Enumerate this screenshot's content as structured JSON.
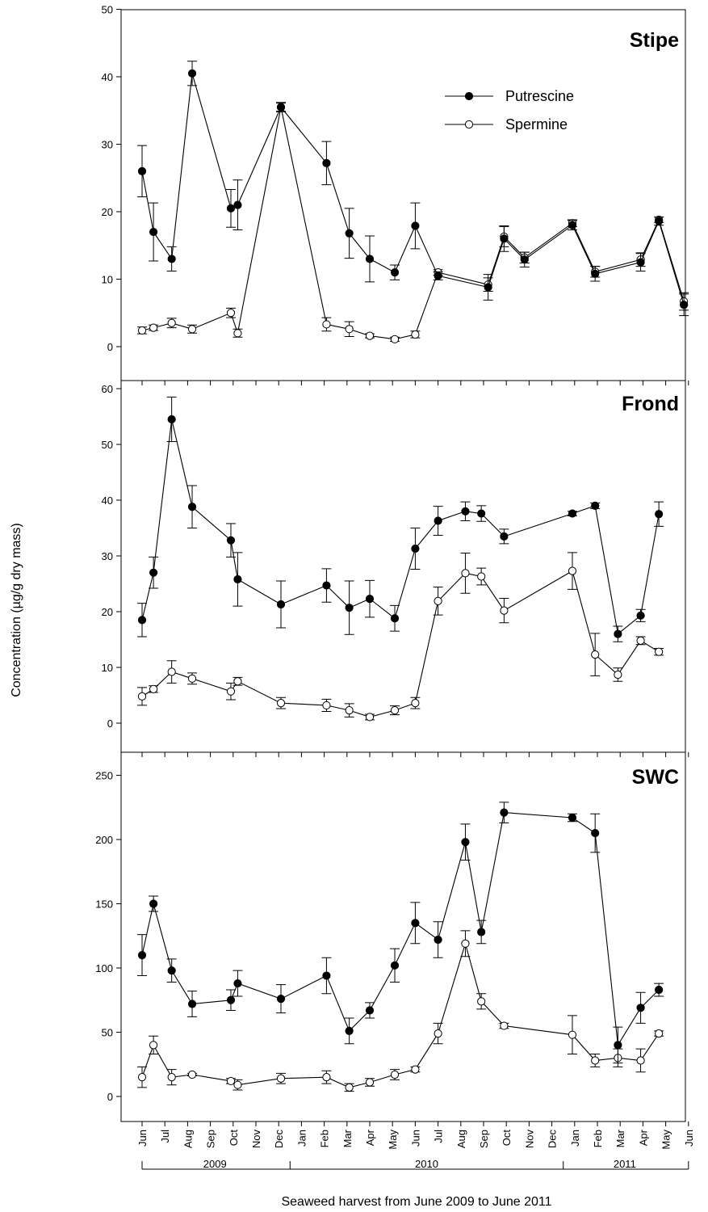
{
  "figure": {
    "ylabel": "Concentration (µg/g dry mass)",
    "xlabel": "Seaweed harvest from June 2009 to June 2011",
    "months": [
      "Jun",
      "Jul",
      "Aug",
      "Sep",
      "Oct",
      "Nov",
      "Dec",
      "Jan",
      "Feb",
      "Mar",
      "Apr",
      "May",
      "Jun",
      "Jul",
      "Aug",
      "Sep",
      "Oct",
      "Nov",
      "Dec",
      "Jan",
      "Feb",
      "Mar",
      "Apr",
      "May",
      "Jun"
    ],
    "years": [
      {
        "label": "2009",
        "from": 0,
        "to": 6
      },
      {
        "label": "2010",
        "from": 7,
        "to": 18
      },
      {
        "label": "2011",
        "from": 19,
        "to": 24
      }
    ],
    "legend": {
      "location": "top-right",
      "putrescine": "Putrescine",
      "spermine": "Spermine"
    },
    "colors": {
      "axis": "#000000",
      "putrescine_marker": "#000000",
      "spermine_marker": "#ffffff"
    }
  },
  "chart_data": [
    {
      "type": "line",
      "title": "Stipe",
      "xlabel": "Seaweed harvest from June 2009 to June 2011",
      "ylabel": "Concentration (µg/g dry mass)",
      "ylim": [
        0,
        50
      ],
      "yticks": [
        0,
        10,
        20,
        30,
        40,
        50
      ],
      "grid": false,
      "x_unit": "months since June 2009",
      "series": [
        {
          "name": "Putrescine",
          "x": [
            0,
            0.5,
            1.3,
            2.2,
            3.9,
            4.2,
            6.1,
            8.1,
            9.1,
            10.0,
            11.1,
            12.0,
            13.0,
            15.2,
            15.9,
            16.8,
            18.9,
            19.9,
            21.9,
            22.7,
            23.8
          ],
          "y": [
            26.0,
            17.0,
            13.0,
            40.5,
            20.5,
            21.0,
            35.5,
            27.2,
            16.8,
            13.0,
            11.0,
            17.9,
            10.5,
            8.8,
            16.0,
            12.9,
            18.0,
            10.8,
            12.5,
            18.6,
            6.2
          ],
          "err": [
            3.8,
            4.3,
            1.8,
            1.8,
            2.8,
            3.7,
            0.7,
            3.2,
            3.7,
            3.4,
            1.1,
            3.4,
            0.6,
            1.9,
            1.9,
            1.1,
            0.7,
            1.1,
            1.3,
            0.6,
            1.6
          ]
        },
        {
          "name": "Spermine",
          "x": [
            0,
            0.5,
            1.3,
            2.2,
            3.9,
            4.2,
            6.1,
            8.1,
            9.1,
            10.0,
            11.1,
            12.0,
            13.0,
            15.2,
            15.9,
            16.8,
            18.9,
            19.9,
            21.9,
            22.7,
            23.8
          ],
          "y": [
            2.4,
            2.8,
            3.5,
            2.6,
            5.0,
            2.0,
            35.5,
            3.3,
            2.6,
            1.6,
            1.1,
            1.8,
            11.0,
            9.2,
            16.3,
            13.2,
            18.3,
            11.1,
            12.9,
            18.8,
            6.7
          ],
          "err": [
            0.5,
            0.4,
            0.7,
            0.6,
            0.7,
            0.6,
            0.6,
            1.0,
            1.1,
            0.3,
            0.3,
            0.5,
            0.4,
            1.0,
            1.5,
            0.8,
            0.5,
            0.8,
            1.0,
            0.4,
            1.3
          ]
        }
      ]
    },
    {
      "type": "line",
      "title": "Frond",
      "xlabel": "Seaweed harvest from June 2009 to June 2011",
      "ylabel": "Concentration (µg/g dry mass)",
      "ylim": [
        0,
        60
      ],
      "yticks": [
        0,
        10,
        20,
        30,
        40,
        50,
        60
      ],
      "grid": false,
      "x_unit": "months since June 2009",
      "series": [
        {
          "name": "Putrescine",
          "x": [
            0,
            0.5,
            1.3,
            2.2,
            3.9,
            4.2,
            6.1,
            8.1,
            9.1,
            10.0,
            11.1,
            12.0,
            13.0,
            14.2,
            14.9,
            15.9,
            18.9,
            19.9,
            20.9,
            21.9,
            22.7
          ],
          "y": [
            18.5,
            27.0,
            54.5,
            38.8,
            32.8,
            25.8,
            21.3,
            24.7,
            20.7,
            22.3,
            18.8,
            31.3,
            36.3,
            38.0,
            37.6,
            33.5,
            37.6,
            39.0,
            16.0,
            19.3,
            37.5
          ],
          "err": [
            3.0,
            2.8,
            4.0,
            3.8,
            3.0,
            4.8,
            4.2,
            3.0,
            4.8,
            3.3,
            2.3,
            3.7,
            2.6,
            1.7,
            1.4,
            1.3,
            0.4,
            0.5,
            1.4,
            1.1,
            2.2
          ]
        },
        {
          "name": "Spermine",
          "x": [
            0,
            0.5,
            1.3,
            2.2,
            3.9,
            4.2,
            6.1,
            8.1,
            9.1,
            10.0,
            11.1,
            12.0,
            13.0,
            14.2,
            14.9,
            15.9,
            18.9,
            19.9,
            20.9,
            21.9,
            22.7
          ],
          "y": [
            4.8,
            6.1,
            9.2,
            8.0,
            5.7,
            7.5,
            3.6,
            3.2,
            2.3,
            1.1,
            2.3,
            3.6,
            21.9,
            26.9,
            26.3,
            20.2,
            27.3,
            12.3,
            8.7,
            14.8,
            12.8
          ],
          "err": [
            1.6,
            0.6,
            2.0,
            1.0,
            1.5,
            0.7,
            1.0,
            1.1,
            1.2,
            0.5,
            0.8,
            1.0,
            2.5,
            3.6,
            1.5,
            2.2,
            3.3,
            3.8,
            1.2,
            0.7,
            0.6
          ]
        }
      ]
    },
    {
      "type": "line",
      "title": "SWC",
      "xlabel": "Seaweed harvest from June 2009 to June 2011",
      "ylabel": "Concentration (µg/g dry mass)",
      "ylim": [
        -25,
        270
      ],
      "yticks": [
        0,
        50,
        100,
        150,
        200,
        250
      ],
      "grid": false,
      "x_unit": "months since June 2009",
      "series": [
        {
          "name": "Putrescine",
          "x": [
            0,
            0.5,
            1.3,
            2.2,
            3.9,
            4.2,
            6.1,
            8.1,
            9.1,
            10.0,
            11.1,
            12.0,
            13.0,
            14.2,
            14.9,
            15.9,
            18.9,
            19.9,
            20.9,
            21.9,
            22.7
          ],
          "y": [
            110,
            150,
            98,
            72,
            75,
            88,
            76,
            94,
            51,
            67,
            102,
            135,
            122,
            198,
            128,
            221,
            217,
            205,
            40,
            69,
            83
          ],
          "err": [
            16,
            6,
            9,
            10,
            8,
            10,
            11,
            14,
            10,
            6,
            13,
            16,
            14,
            14,
            9,
            8,
            3,
            15,
            14,
            12,
            5
          ]
        },
        {
          "name": "Spermine",
          "x": [
            0,
            0.5,
            1.3,
            2.2,
            3.9,
            4.2,
            6.1,
            8.1,
            9.1,
            10.0,
            11.1,
            12.0,
            13.0,
            14.2,
            14.9,
            15.9,
            18.9,
            19.9,
            20.9,
            21.9,
            22.7
          ],
          "y": [
            15,
            40,
            15,
            17,
            12,
            9,
            14,
            15,
            7,
            11,
            17,
            21,
            49,
            119,
            74,
            55,
            48,
            28,
            30,
            28,
            49
          ],
          "err": [
            8,
            7,
            6,
            1,
            2,
            4,
            4,
            5,
            3,
            3,
            4,
            2,
            8,
            10,
            6,
            2,
            15,
            5,
            7,
            9,
            2
          ]
        }
      ]
    }
  ]
}
